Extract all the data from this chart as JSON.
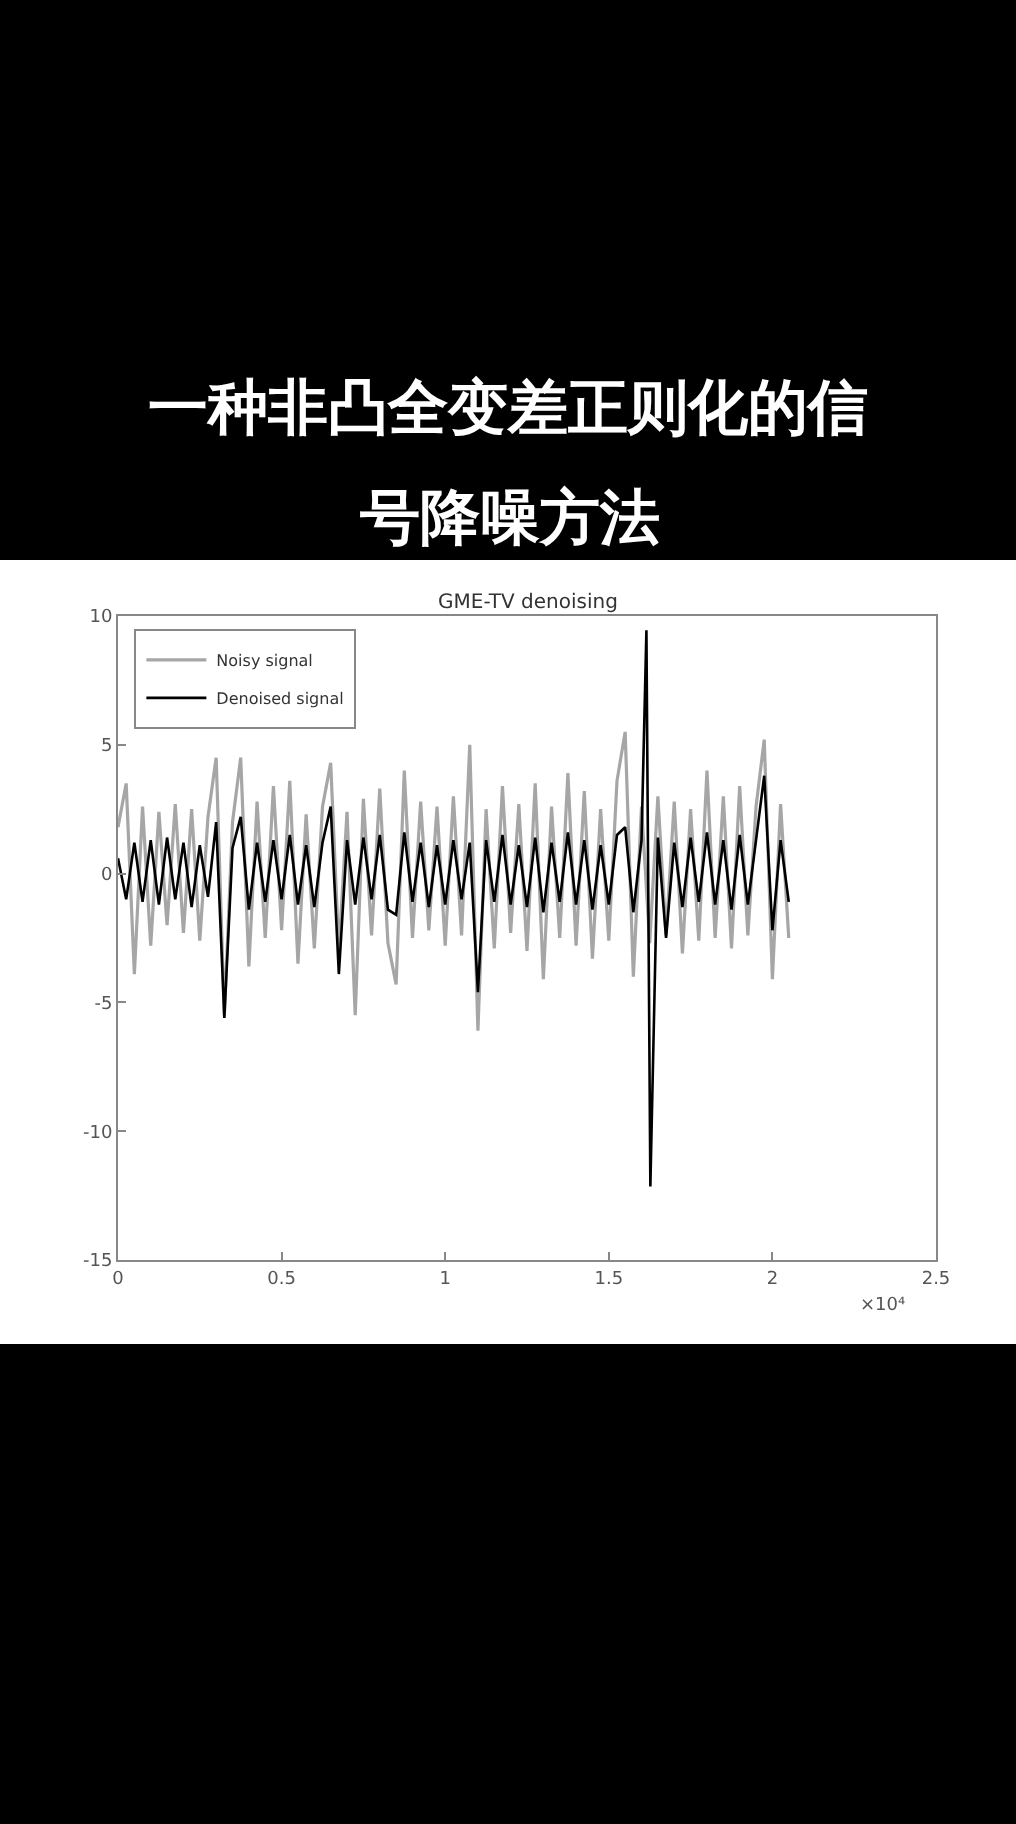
{
  "chart_data": {
    "type": "line",
    "title": "一种非凸全变差正则化的信号降噪方法",
    "subtitle": "GME-TV denoising",
    "annotations": [
      "×10⁴"
    ],
    "xlim": [
      0,
      2.5
    ],
    "xticks": [
      0,
      0.5,
      1,
      1.5,
      2,
      2.5
    ],
    "ylim": [
      -15,
      10
    ],
    "yticks": [
      -15,
      -10,
      -5,
      0,
      5,
      10
    ],
    "legend": "top left",
    "marker": "none",
    "line_style": "solid",
    "series": [
      {
        "name": "Noisy signal",
        "color": "#a6a6a6",
        "x": [
          0,
          0.025,
          0.05,
          0.075,
          0.1,
          0.125,
          0.15,
          0.175,
          0.2,
          0.225,
          0.25,
          0.275,
          0.3,
          0.325,
          0.35,
          0.375,
          0.4,
          0.425,
          0.45,
          0.475,
          0.5,
          0.525,
          0.55,
          0.575,
          0.6,
          0.625,
          0.65,
          0.675,
          0.7,
          0.725,
          0.75,
          0.775,
          0.8,
          0.825,
          0.85,
          0.875,
          0.9,
          0.925,
          0.95,
          0.975,
          1.0,
          1.025,
          1.05,
          1.075,
          1.1,
          1.125,
          1.15,
          1.175,
          1.2,
          1.225,
          1.25,
          1.275,
          1.3,
          1.325,
          1.35,
          1.375,
          1.4,
          1.425,
          1.45,
          1.475,
          1.5,
          1.525,
          1.55,
          1.575,
          1.6,
          1.625,
          1.65,
          1.675,
          1.7,
          1.725,
          1.75,
          1.775,
          1.8,
          1.825,
          1.85,
          1.875,
          1.9,
          1.925,
          1.95,
          1.975,
          2.0,
          2.025,
          2.05
        ],
        "values": [
          1.8,
          3.5,
          -3.9,
          2.6,
          -2.8,
          2.4,
          -2.0,
          2.7,
          -2.3,
          2.5,
          -2.6,
          2.2,
          4.5,
          -5.5,
          2.0,
          4.5,
          -3.6,
          2.8,
          -2.5,
          3.4,
          -2.2,
          3.6,
          -3.5,
          2.3,
          -2.9,
          2.6,
          4.3,
          -3.0,
          2.4,
          -5.5,
          2.9,
          -2.4,
          3.3,
          -2.7,
          -4.3,
          4.0,
          -2.5,
          2.8,
          -2.2,
          2.6,
          -2.8,
          3.0,
          -2.4,
          5.0,
          -6.1,
          2.5,
          -2.9,
          3.4,
          -2.3,
          2.7,
          -3.0,
          3.5,
          -4.1,
          2.6,
          -2.5,
          3.9,
          -2.8,
          3.2,
          -3.3,
          2.5,
          -2.6,
          3.6,
          5.5,
          -4.0,
          2.6,
          -2.7,
          3.0,
          -2.4,
          2.8,
          -3.1,
          2.5,
          -2.6,
          4.0,
          -2.5,
          3.0,
          -2.9,
          3.4,
          -2.4,
          2.6,
          5.2,
          -4.1,
          2.7,
          -2.5
        ]
      },
      {
        "name": "Denoised signal",
        "color": "#000000",
        "x": [
          0,
          0.025,
          0.05,
          0.075,
          0.1,
          0.125,
          0.15,
          0.175,
          0.2,
          0.225,
          0.25,
          0.275,
          0.3,
          0.325,
          0.35,
          0.375,
          0.4,
          0.425,
          0.45,
          0.475,
          0.5,
          0.525,
          0.55,
          0.575,
          0.6,
          0.625,
          0.65,
          0.675,
          0.7,
          0.725,
          0.75,
          0.775,
          0.8,
          0.825,
          0.85,
          0.875,
          0.9,
          0.925,
          0.95,
          0.975,
          1.0,
          1.025,
          1.05,
          1.075,
          1.1,
          1.125,
          1.15,
          1.175,
          1.2,
          1.225,
          1.25,
          1.275,
          1.3,
          1.325,
          1.35,
          1.375,
          1.4,
          1.425,
          1.45,
          1.475,
          1.5,
          1.525,
          1.55,
          1.575,
          1.6,
          1.615,
          1.627,
          1.65,
          1.675,
          1.7,
          1.725,
          1.75,
          1.775,
          1.8,
          1.825,
          1.85,
          1.875,
          1.9,
          1.925,
          1.95,
          1.975,
          2.0,
          2.025,
          2.05
        ],
        "values": [
          0.6,
          -1.0,
          1.2,
          -1.1,
          1.3,
          -1.2,
          1.4,
          -1.0,
          1.2,
          -1.3,
          1.1,
          -0.9,
          2.0,
          -5.6,
          1.0,
          2.2,
          -1.4,
          1.2,
          -1.1,
          1.3,
          -1.0,
          1.5,
          -1.2,
          1.1,
          -1.3,
          1.2,
          2.6,
          -3.9,
          1.3,
          -1.2,
          1.4,
          -1.0,
          1.5,
          -1.4,
          -1.6,
          1.6,
          -1.1,
          1.2,
          -1.3,
          1.1,
          -1.2,
          1.3,
          -1.0,
          1.2,
          -4.6,
          1.3,
          -1.1,
          1.5,
          -1.2,
          1.1,
          -1.3,
          1.4,
          -1.5,
          1.2,
          -1.1,
          1.6,
          -1.2,
          1.3,
          -1.4,
          1.1,
          -1.2,
          1.5,
          1.8,
          -1.5,
          1.3,
          9.45,
          -12.15,
          1.4,
          -2.5,
          1.2,
          -1.3,
          1.4,
          -1.1,
          1.6,
          -1.2,
          1.3,
          -1.4,
          1.5,
          -1.2,
          1.3,
          3.8,
          -2.2,
          1.3,
          -1.1
        ]
      }
    ]
  }
}
